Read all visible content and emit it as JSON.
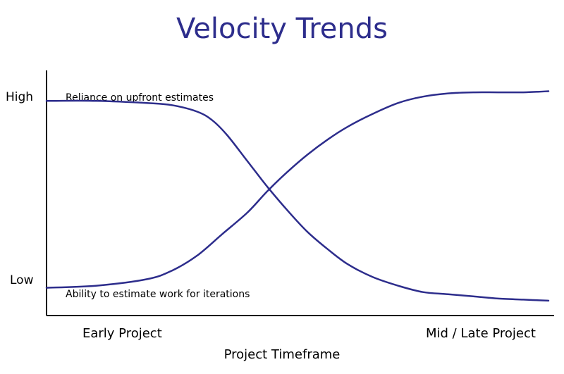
{
  "chart_data": {
    "type": "line",
    "title": "Velocity Trends",
    "xlabel": "Project Timeframe",
    "x_tick_labels": [
      "Early Project",
      "Mid / Late Project"
    ],
    "y_tick_labels": [
      "High",
      "Low"
    ],
    "xlim": [
      0,
      100
    ],
    "ylim": [
      0,
      100
    ],
    "grid": false,
    "line_color": "#2d2d8c",
    "series": [
      {
        "name": "Reliance on upfront estimates",
        "x": [
          0,
          10,
          20,
          25,
          30,
          33,
          36,
          40,
          44,
          48,
          52,
          56,
          60,
          65,
          70,
          75,
          80,
          85,
          90,
          95,
          100
        ],
        "y": [
          95,
          95,
          94,
          93,
          90,
          86,
          79,
          67,
          55,
          44,
          34,
          26,
          19,
          13,
          9,
          6,
          5,
          4,
          3,
          2.5,
          2
        ]
      },
      {
        "name": "Ability to estimate work for iterations",
        "x": [
          0,
          10,
          20,
          25,
          30,
          35,
          40,
          44,
          48,
          52,
          56,
          60,
          65,
          70,
          75,
          80,
          85,
          90,
          95,
          100
        ],
        "y": [
          8,
          9,
          12,
          16,
          23,
          33,
          43,
          53,
          62,
          70,
          77,
          83,
          89,
          94,
          97,
          98.5,
          99,
          99,
          99,
          99.5
        ]
      }
    ]
  }
}
